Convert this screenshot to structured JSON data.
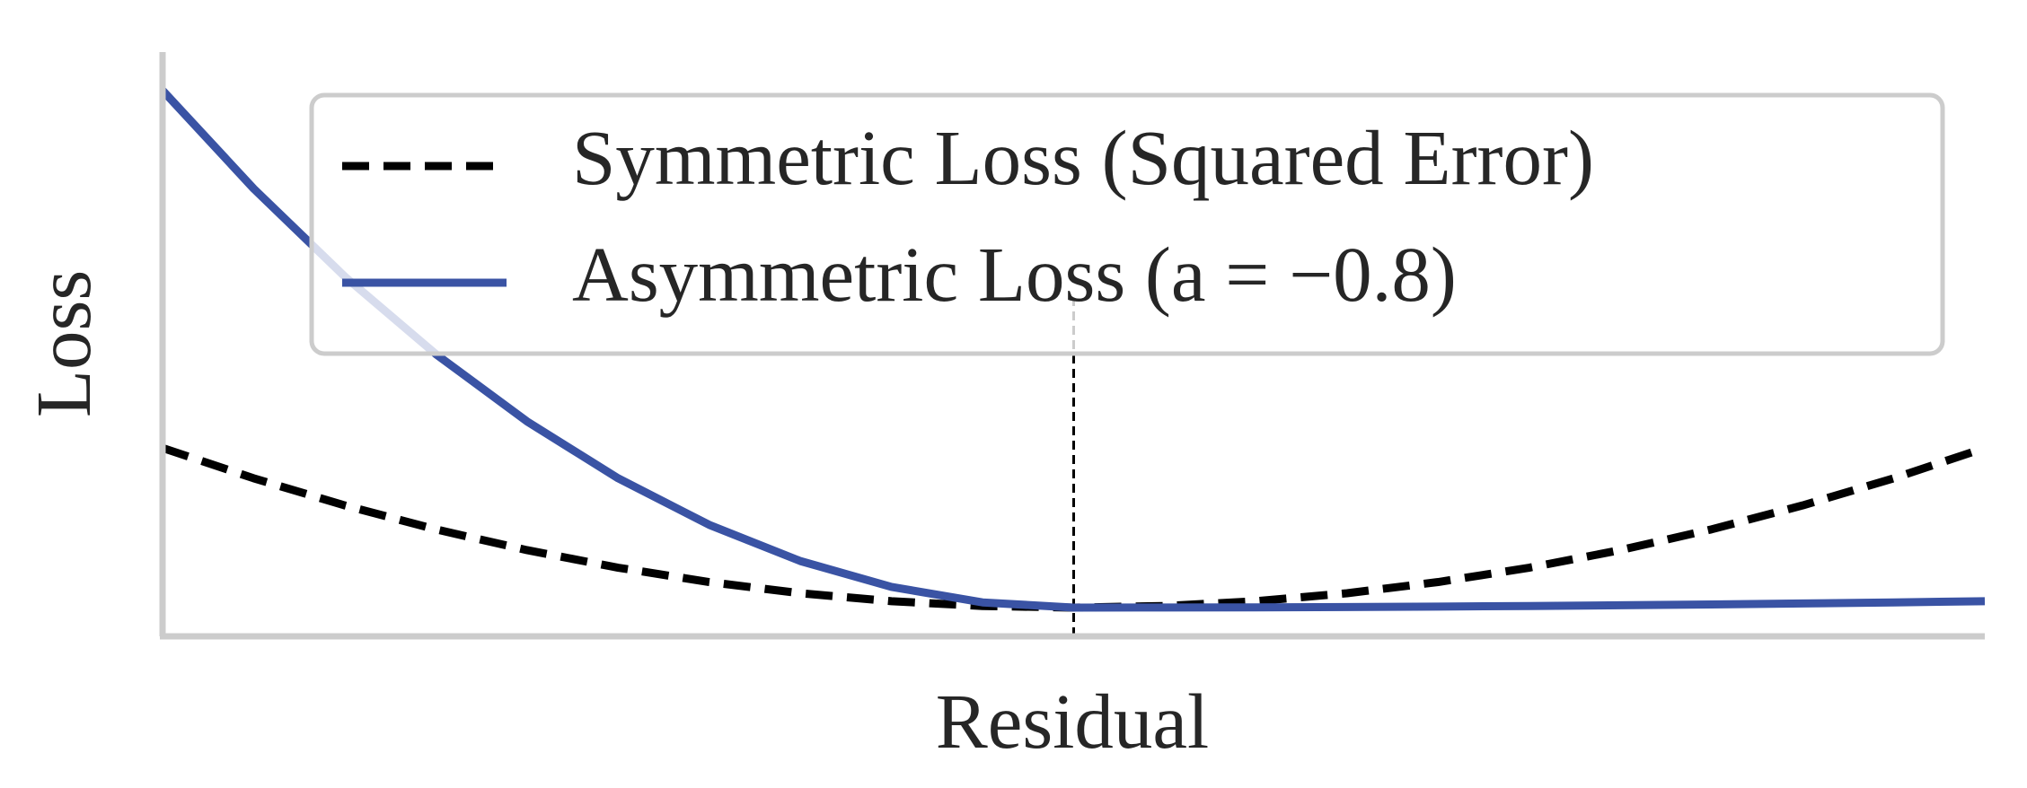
{
  "chart_data": {
    "type": "line",
    "x_label": "Residual",
    "y_label": "Loss",
    "x": [
      -1,
      -0.9,
      -0.8,
      -0.7,
      -0.6,
      -0.5,
      -0.4,
      -0.3,
      -0.2,
      -0.1,
      0,
      0.1,
      0.2,
      0.3,
      0.4,
      0.5,
      0.6,
      0.7,
      0.8,
      0.9,
      1
    ],
    "series": [
      {
        "name": "Symmetric Loss (Squared Error)",
        "color": "#000000",
        "dash": true,
        "values": [
          1,
          0.81,
          0.64,
          0.49,
          0.36,
          0.25,
          0.16,
          0.09,
          0.04,
          0.01,
          0,
          0.01,
          0.04,
          0.09,
          0.16,
          0.25,
          0.36,
          0.49,
          0.64,
          0.81,
          1
        ]
      },
      {
        "name": "Asymmetric Loss (a = −0.8)",
        "color": "#3a53a4",
        "dash": false,
        "values": [
          3.24,
          2.6244,
          2.0736,
          1.5876,
          1.1664,
          0.81,
          0.5184,
          0.2916,
          0.1296,
          0.0324,
          0,
          0.0004,
          0.0016,
          0.0036,
          0.0064,
          0.01,
          0.0144,
          0.0196,
          0.0256,
          0.0324,
          0.04
        ]
      }
    ],
    "vline": {
      "x": 0,
      "ylim": [
        -0.18,
        1.93
      ],
      "color": "#000000"
    },
    "xlim": [
      -1,
      1
    ],
    "ylim": [
      -0.18,
      3.48
    ],
    "legend": "upper right"
  }
}
